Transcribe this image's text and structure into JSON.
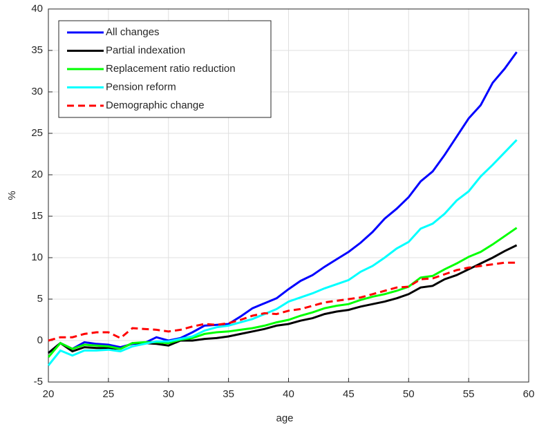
{
  "chart_data": {
    "type": "line",
    "xlabel": "age",
    "ylabel": "%",
    "x": [
      20,
      21,
      22,
      23,
      24,
      25,
      26,
      27,
      28,
      29,
      30,
      31,
      32,
      33,
      34,
      35,
      36,
      37,
      38,
      39,
      40,
      41,
      42,
      43,
      44,
      45,
      46,
      47,
      48,
      49,
      50,
      51,
      52,
      53,
      54,
      55,
      56,
      57,
      58,
      59
    ],
    "series": [
      {
        "name": "All changes",
        "color": "#0000ff",
        "style": "solid",
        "values": [
          -1.5,
          -0.3,
          -1.0,
          -0.2,
          -0.4,
          -0.5,
          -0.8,
          -0.4,
          -0.3,
          0.4,
          0.0,
          0.3,
          1.0,
          1.8,
          1.9,
          2.0,
          2.9,
          3.9,
          4.5,
          5.1,
          6.2,
          7.2,
          7.9,
          8.9,
          9.8,
          10.7,
          11.8,
          13.1,
          14.7,
          15.9,
          17.3,
          19.2,
          20.4,
          22.4,
          24.6,
          26.8,
          28.4,
          31.1,
          32.8,
          34.8
        ]
      },
      {
        "name": "Partial indexation",
        "color": "#000000",
        "style": "solid",
        "values": [
          -1.5,
          -0.3,
          -1.3,
          -0.8,
          -0.9,
          -0.9,
          -1.0,
          -0.3,
          -0.3,
          -0.4,
          -0.6,
          0.0,
          0.0,
          0.2,
          0.3,
          0.5,
          0.8,
          1.1,
          1.4,
          1.8,
          2.0,
          2.4,
          2.7,
          3.2,
          3.5,
          3.7,
          4.1,
          4.4,
          4.7,
          5.1,
          5.6,
          6.4,
          6.6,
          7.4,
          7.9,
          8.6,
          9.3,
          10.0,
          10.8,
          11.5
        ]
      },
      {
        "name": "Replacement ratio reduction",
        "color": "#00ff00",
        "style": "solid",
        "values": [
          -2.0,
          -0.3,
          -1.0,
          -0.5,
          -0.6,
          -0.7,
          -1.0,
          -0.3,
          -0.2,
          -0.2,
          -0.3,
          0.1,
          0.3,
          0.8,
          1.0,
          1.1,
          1.3,
          1.5,
          1.8,
          2.2,
          2.5,
          3.0,
          3.4,
          3.9,
          4.2,
          4.4,
          4.9,
          5.3,
          5.6,
          6.0,
          6.5,
          7.6,
          7.8,
          8.6,
          9.3,
          10.1,
          10.7,
          11.6,
          12.6,
          13.6
        ]
      },
      {
        "name": "Pension reform",
        "color": "#00ffff",
        "style": "solid",
        "values": [
          -3.0,
          -1.2,
          -1.8,
          -1.2,
          -1.2,
          -1.1,
          -1.3,
          -0.7,
          -0.4,
          -0.1,
          -0.1,
          0.2,
          0.5,
          1.2,
          1.6,
          1.8,
          2.2,
          2.6,
          3.2,
          3.8,
          4.7,
          5.2,
          5.7,
          6.3,
          6.8,
          7.3,
          8.3,
          9.0,
          10.0,
          11.1,
          11.9,
          13.5,
          14.1,
          15.3,
          16.9,
          18.0,
          19.8,
          21.2,
          22.7,
          24.2
        ]
      },
      {
        "name": "Demographic change",
        "color": "#ff0000",
        "style": "dashed",
        "values": [
          0.0,
          0.4,
          0.4,
          0.8,
          1.0,
          1.0,
          0.3,
          1.5,
          1.4,
          1.3,
          1.1,
          1.3,
          1.7,
          2.0,
          1.9,
          2.1,
          2.5,
          3.0,
          3.3,
          3.2,
          3.6,
          3.8,
          4.2,
          4.6,
          4.8,
          5.0,
          5.2,
          5.6,
          6.0,
          6.4,
          6.5,
          7.4,
          7.5,
          8.0,
          8.5,
          8.8,
          9.0,
          9.2,
          9.4,
          9.4
        ]
      }
    ],
    "xlim": [
      20,
      60
    ],
    "xticks": [
      20,
      25,
      30,
      35,
      40,
      45,
      50,
      55,
      60
    ],
    "ylim": [
      -5,
      40
    ],
    "yticks": [
      -5,
      0,
      5,
      10,
      15,
      20,
      25,
      30,
      35,
      40
    ],
    "grid": true,
    "legend": "upper left"
  }
}
